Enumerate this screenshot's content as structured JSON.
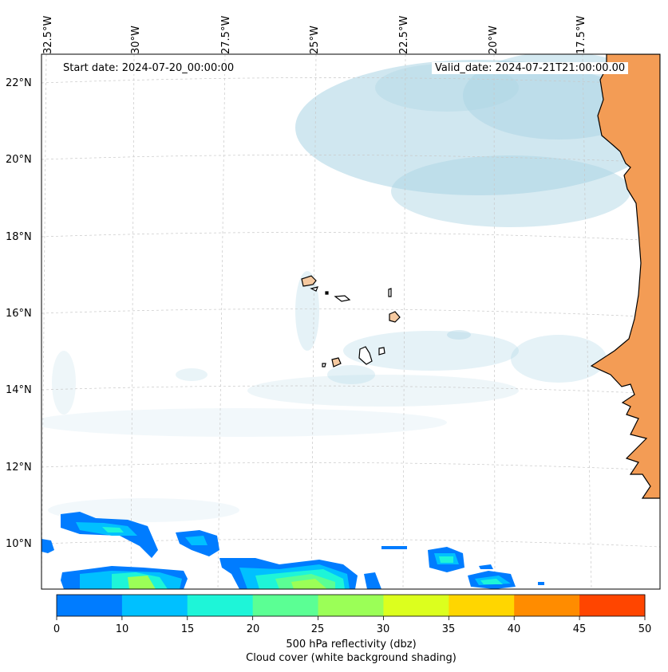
{
  "map": {
    "lon_labels": [
      "32.5°W",
      "30°W",
      "27.5°W",
      "25°W",
      "22.5°W",
      "20°W",
      "17.5°W"
    ],
    "lat_labels": [
      "22°N",
      "20°N",
      "18°N",
      "16°N",
      "14°N",
      "12°N",
      "10°N"
    ],
    "start_date": "Start date: 2024-07-20_00:00:00",
    "valid_date": "Valid_date: 2024-07-21T21:00:00.00",
    "land_color": "#f39c55",
    "cloud_color": "#a9d3e3"
  },
  "colorbar": {
    "ticks": [
      "0",
      "10",
      "15",
      "20",
      "25",
      "30",
      "35",
      "40",
      "45",
      "50"
    ],
    "colors": [
      "#007cff",
      "#00c0ff",
      "#1ef5d8",
      "#5bff94",
      "#9bff57",
      "#dcff1e",
      "#ffd600",
      "#ff8c00",
      "#ff4500"
    ],
    "label_line1": "500 hPa reflectivity (dbz)",
    "label_line2": "Cloud cover (white background shading)"
  }
}
